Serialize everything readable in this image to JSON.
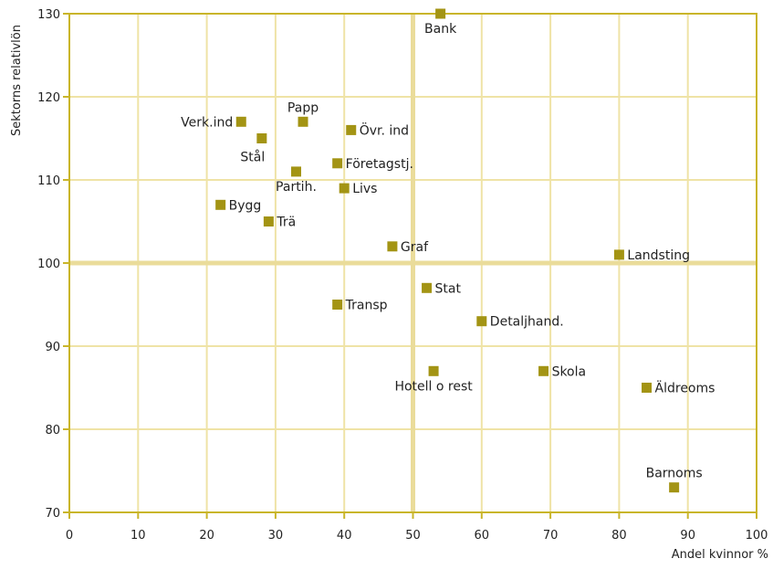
{
  "chart_data": {
    "type": "scatter",
    "xlabel": "Andel kvinnor %",
    "ylabel": "Sektorns relativlön",
    "xlim": [
      0,
      100
    ],
    "ylim": [
      70,
      130
    ],
    "x_ticks": [
      "0",
      "10",
      "20",
      "30",
      "40",
      "50",
      "60",
      "70",
      "80",
      "90",
      "100"
    ],
    "y_ticks": [
      "70",
      "80",
      "90",
      "100",
      "110",
      "120",
      "130"
    ],
    "reference_lines": {
      "x": 50,
      "y": 100
    },
    "grid": true,
    "colors": {
      "marker": "#a39414",
      "grid": "#efe3a6",
      "axis": "#c9b52a",
      "reference": "#eadc9a"
    },
    "points": [
      {
        "label": "Bank",
        "x": 54,
        "y": 130,
        "label_pos": "below"
      },
      {
        "label": "Verk.ind",
        "x": 25,
        "y": 117,
        "label_pos": "left"
      },
      {
        "label": "Papp",
        "x": 34,
        "y": 117,
        "label_pos": "above"
      },
      {
        "label": "Övr. ind",
        "x": 41,
        "y": 116,
        "label_pos": "right"
      },
      {
        "label": "Stål",
        "x": 28,
        "y": 115,
        "label_pos": "below-left"
      },
      {
        "label": "Företagstj.",
        "x": 39,
        "y": 112,
        "label_pos": "right"
      },
      {
        "label": "Partih.",
        "x": 33,
        "y": 111,
        "label_pos": "below"
      },
      {
        "label": "Livs",
        "x": 40,
        "y": 109,
        "label_pos": "right"
      },
      {
        "label": "Bygg",
        "x": 22,
        "y": 107,
        "label_pos": "right"
      },
      {
        "label": "Trä",
        "x": 29,
        "y": 105,
        "label_pos": "right"
      },
      {
        "label": "Graf",
        "x": 47,
        "y": 102,
        "label_pos": "right"
      },
      {
        "label": "Landsting",
        "x": 80,
        "y": 101,
        "label_pos": "right"
      },
      {
        "label": "Stat",
        "x": 52,
        "y": 97,
        "label_pos": "right"
      },
      {
        "label": "Transp",
        "x": 39,
        "y": 95,
        "label_pos": "right"
      },
      {
        "label": "Detaljhand.",
        "x": 60,
        "y": 93,
        "label_pos": "right"
      },
      {
        "label": "Hotell o rest",
        "x": 53,
        "y": 87,
        "label_pos": "below"
      },
      {
        "label": "Skola",
        "x": 69,
        "y": 87,
        "label_pos": "right"
      },
      {
        "label": "Äldreoms",
        "x": 84,
        "y": 85,
        "label_pos": "right"
      },
      {
        "label": "Barnoms",
        "x": 88,
        "y": 73,
        "label_pos": "above"
      }
    ]
  }
}
